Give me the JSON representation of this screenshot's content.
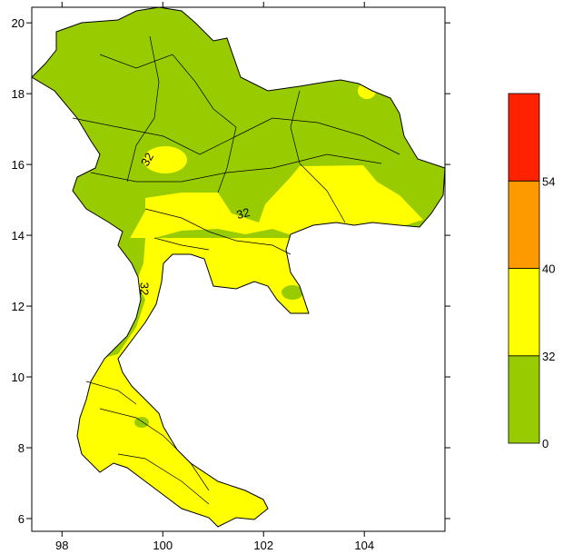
{
  "map": {
    "xlim": [
      97.4,
      105.6
    ],
    "ylim": [
      5.64,
      20.44
    ],
    "xticks": [
      98,
      100,
      102,
      104
    ],
    "yticks": [
      6,
      8,
      10,
      12,
      14,
      16,
      18,
      20
    ],
    "colorbar": {
      "levels": [
        0,
        32,
        40,
        54
      ],
      "colors": [
        "#99cc00",
        "#ffff00",
        "#ff9900",
        "#ff2200"
      ]
    },
    "contour_labels": [
      "32",
      "32",
      "32"
    ]
  }
}
